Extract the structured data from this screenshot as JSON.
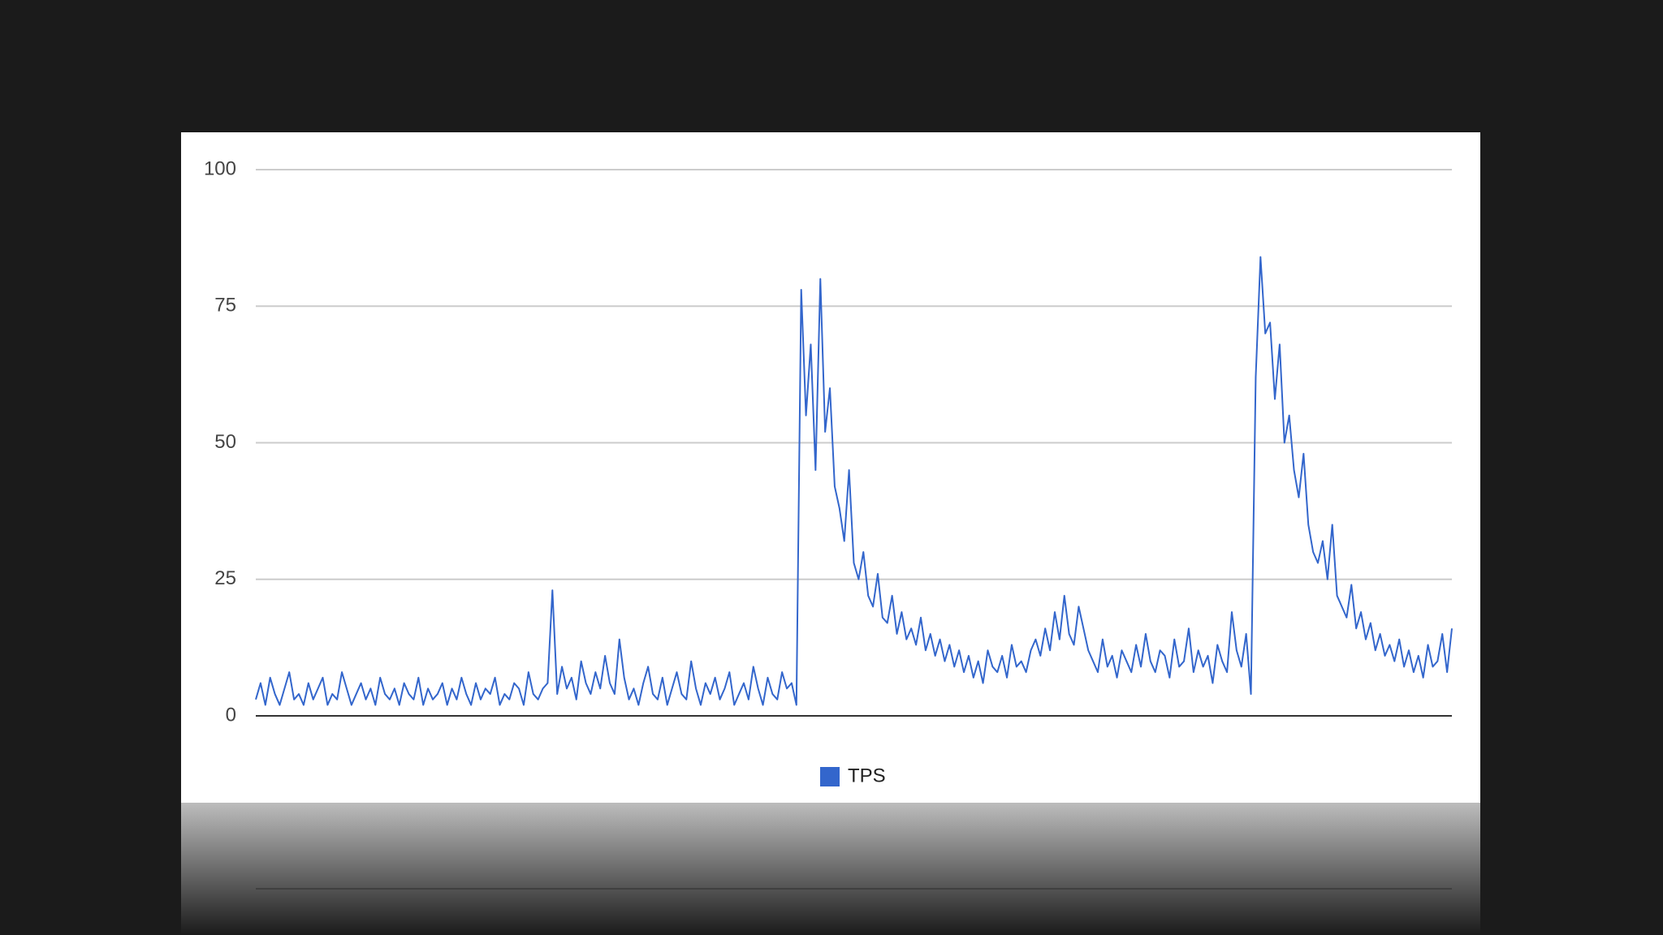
{
  "chart_data": {
    "type": "line",
    "series": [
      {
        "name": "TPS",
        "color": "#3366cc",
        "values": [
          3,
          6,
          2,
          7,
          4,
          2,
          5,
          8,
          3,
          4,
          2,
          6,
          3,
          5,
          7,
          2,
          4,
          3,
          8,
          5,
          2,
          4,
          6,
          3,
          5,
          2,
          7,
          4,
          3,
          5,
          2,
          6,
          4,
          3,
          7,
          2,
          5,
          3,
          4,
          6,
          2,
          5,
          3,
          7,
          4,
          2,
          6,
          3,
          5,
          4,
          7,
          2,
          4,
          3,
          6,
          5,
          2,
          8,
          4,
          3,
          5,
          6,
          23,
          4,
          9,
          5,
          7,
          3,
          10,
          6,
          4,
          8,
          5,
          11,
          6,
          4,
          14,
          7,
          3,
          5,
          2,
          6,
          9,
          4,
          3,
          7,
          2,
          5,
          8,
          4,
          3,
          10,
          5,
          2,
          6,
          4,
          7,
          3,
          5,
          8,
          2,
          4,
          6,
          3,
          9,
          5,
          2,
          7,
          4,
          3,
          8,
          5,
          6,
          2,
          78,
          55,
          68,
          45,
          80,
          52,
          60,
          42,
          38,
          32,
          45,
          28,
          25,
          30,
          22,
          20,
          26,
          18,
          17,
          22,
          15,
          19,
          14,
          16,
          13,
          18,
          12,
          15,
          11,
          14,
          10,
          13,
          9,
          12,
          8,
          11,
          7,
          10,
          6,
          12,
          9,
          8,
          11,
          7,
          13,
          9,
          10,
          8,
          12,
          14,
          11,
          16,
          12,
          19,
          14,
          22,
          15,
          13,
          20,
          16,
          12,
          10,
          8,
          14,
          9,
          11,
          7,
          12,
          10,
          8,
          13,
          9,
          15,
          10,
          8,
          12,
          11,
          7,
          14,
          9,
          10,
          16,
          8,
          12,
          9,
          11,
          6,
          13,
          10,
          8,
          19,
          12,
          9,
          15,
          4,
          62,
          84,
          70,
          72,
          58,
          68,
          50,
          55,
          45,
          40,
          48,
          35,
          30,
          28,
          32,
          25,
          35,
          22,
          20,
          18,
          24,
          16,
          19,
          14,
          17,
          12,
          15,
          11,
          13,
          10,
          14,
          9,
          12,
          8,
          11,
          7,
          13,
          9,
          10,
          15,
          8,
          16
        ]
      }
    ],
    "ylim": [
      0,
      100
    ],
    "yticks": [
      0,
      25,
      50,
      75,
      100
    ],
    "grid": true,
    "legend": "bottom"
  }
}
